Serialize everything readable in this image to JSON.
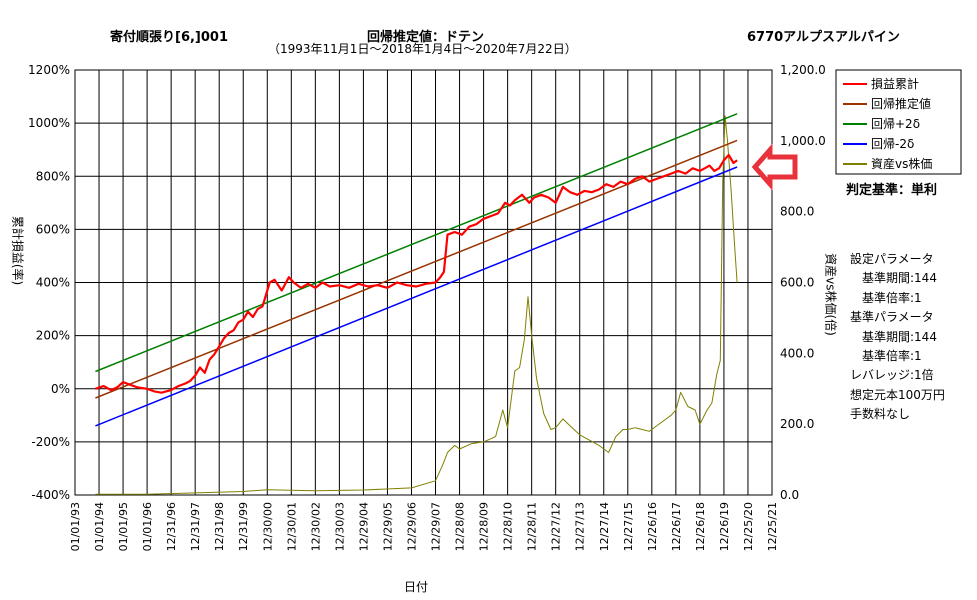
{
  "header": {
    "strategy": "寄付順張り[6,]001",
    "method": "回帰推定値：ドテン",
    "period": "（1993年11月1日～2018年1月4日～2020年7月22日）",
    "stock": "6770アルプスアルパイン"
  },
  "judge_label": "判定基準：単利",
  "params": [
    "設定パラメータ",
    "　基準期間:144",
    "　基準倍率:1",
    "基準パラメータ",
    "　基準期間:144",
    "　基準倍率:1",
    "レバレッジ:1倍",
    "想定元本100万円",
    "手数料なし"
  ],
  "colors": {
    "cum": "#ff0000",
    "reg": "#993300",
    "plus2": "#008000",
    "minus2": "#0000ff",
    "price": "#808000",
    "arrow": "#e8333c"
  },
  "chart_data": {
    "type": "line",
    "title": "",
    "xlabel": "日付",
    "ylabel": "累計損益(率)",
    "y2label": "資産vs株価(倍)",
    "ylim": [
      -400,
      1200
    ],
    "y2lim": [
      0,
      1200
    ],
    "yticks": [
      -400,
      -200,
      0,
      200,
      400,
      600,
      800,
      1000,
      1200
    ],
    "ytick_labels": [
      "-400%",
      "-200%",
      "0%",
      "200%",
      "400%",
      "600%",
      "800%",
      "1000%",
      "1200%"
    ],
    "y2ticks": [
      0,
      200,
      400,
      600,
      800,
      1000,
      1200
    ],
    "y2tick_labels": [
      "0.0",
      "200.0",
      "400.0",
      "600.0",
      "800.0",
      "1,000.0",
      "1,200.0"
    ],
    "xticks": [
      "01/01/93",
      "01/01/94",
      "01/01/95",
      "01/01/96",
      "12/31/96",
      "12/31/97",
      "12/31/98",
      "12/31/99",
      "12/30/00",
      "12/30/01",
      "12/30/02",
      "12/30/03",
      "12/29/04",
      "12/29/05",
      "12/29/06",
      "12/29/07",
      "12/28/08",
      "12/28/09",
      "12/28/10",
      "12/28/11",
      "12/27/12",
      "12/27/13",
      "12/27/14",
      "12/27/15",
      "12/26/16",
      "12/26/17",
      "12/26/18",
      "12/26/19",
      "12/25/20",
      "12/25/21"
    ],
    "x_start": 1993.0,
    "x_end": 2022.0,
    "legend_position": "top-right",
    "series": [
      {
        "name": "損益累計",
        "axis": "left",
        "x": [
          1993.85,
          1994.2,
          1994.5,
          1994.75,
          1995.0,
          1995.3,
          1995.6,
          1996.0,
          1996.3,
          1996.6,
          1997.0,
          1997.3,
          1997.6,
          1997.8,
          1998.0,
          1998.2,
          1998.4,
          1998.6,
          1998.8,
          1999.0,
          1999.2,
          1999.4,
          1999.6,
          1999.8,
          2000.0,
          2000.2,
          2000.4,
          2000.6,
          2000.8,
          2001.0,
          2001.1,
          2001.3,
          2001.6,
          2001.9,
          2002.1,
          2002.4,
          2002.7,
          2003.0,
          2003.3,
          2003.6,
          2004.0,
          2004.4,
          2004.8,
          2005.2,
          2005.6,
          2006.0,
          2006.4,
          2006.8,
          2007.2,
          2007.6,
          2008.0,
          2008.2,
          2008.35,
          2008.5,
          2008.8,
          2009.1,
          2009.4,
          2009.7,
          2010.0,
          2010.3,
          2010.6,
          2010.9,
          2011.1,
          2011.3,
          2011.6,
          2011.9,
          2012.1,
          2012.4,
          2012.7,
          2013.0,
          2013.3,
          2013.6,
          2013.9,
          2014.2,
          2014.5,
          2014.8,
          2015.1,
          2015.4,
          2015.7,
          2016.0,
          2016.3,
          2016.6,
          2016.9,
          2017.2,
          2017.5,
          2017.8,
          2018.1,
          2018.4,
          2018.7,
          2019.0,
          2019.2,
          2019.4,
          2019.6,
          2019.8,
          2020.0,
          2020.2,
          2020.4,
          2020.55
        ],
        "y": [
          0,
          10,
          -5,
          5,
          25,
          15,
          5,
          0,
          -10,
          -15,
          -5,
          10,
          20,
          30,
          50,
          80,
          60,
          110,
          130,
          160,
          190,
          210,
          220,
          250,
          260,
          290,
          270,
          300,
          310,
          370,
          400,
          410,
          370,
          420,
          400,
          380,
          395,
          380,
          400,
          385,
          390,
          380,
          395,
          385,
          390,
          380,
          400,
          390,
          385,
          395,
          400,
          420,
          440,
          580,
          590,
          580,
          610,
          620,
          640,
          650,
          660,
          700,
          690,
          710,
          730,
          700,
          720,
          730,
          720,
          700,
          760,
          740,
          730,
          745,
          740,
          750,
          770,
          760,
          780,
          770,
          790,
          800,
          780,
          790,
          800,
          810,
          820,
          810,
          830,
          820,
          830,
          840,
          820,
          830,
          860,
          880,
          850,
          860
        ]
      },
      {
        "name": "回帰推定値",
        "axis": "left",
        "x": [
          1993.85,
          2020.55
        ],
        "y": [
          -35,
          935
        ]
      },
      {
        "name": "回帰+2δ",
        "axis": "left",
        "x": [
          1993.85,
          2020.55
        ],
        "y": [
          65,
          1035
        ]
      },
      {
        "name": "回帰-2δ",
        "axis": "left",
        "x": [
          1993.85,
          2020.55
        ],
        "y": [
          -140,
          835
        ]
      },
      {
        "name": "資産vs株価",
        "axis": "right",
        "x": [
          1993.85,
          1996.0,
          2000.0,
          2001.0,
          2003.0,
          2005.0,
          2007.0,
          2008.0,
          2008.3,
          2008.5,
          2008.8,
          2009.0,
          2009.5,
          2010.0,
          2010.5,
          2010.8,
          2011.0,
          2011.3,
          2011.5,
          2011.7,
          2011.85,
          2012.0,
          2012.2,
          2012.5,
          2012.8,
          2013.0,
          2013.3,
          2013.6,
          2014.0,
          2014.4,
          2014.8,
          2015.0,
          2015.2,
          2015.5,
          2015.8,
          2016.0,
          2016.3,
          2016.6,
          2016.9,
          2017.2,
          2017.5,
          2017.8,
          2018.0,
          2018.2,
          2018.5,
          2018.8,
          2019.0,
          2019.3,
          2019.5,
          2019.7,
          2019.85,
          2019.95,
          2020.05,
          2020.15,
          2020.3,
          2020.45,
          2020.55
        ],
        "y": [
          2,
          2,
          10,
          15,
          12,
          14,
          20,
          40,
          85,
          120,
          140,
          130,
          145,
          150,
          165,
          240,
          190,
          350,
          360,
          440,
          560,
          450,
          330,
          230,
          185,
          190,
          215,
          195,
          170,
          155,
          140,
          130,
          120,
          165,
          185,
          185,
          190,
          185,
          180,
          195,
          210,
          225,
          240,
          290,
          250,
          240,
          200,
          240,
          260,
          340,
          380,
          880,
          1070,
          1000,
          860,
          700,
          600
        ]
      }
    ]
  }
}
